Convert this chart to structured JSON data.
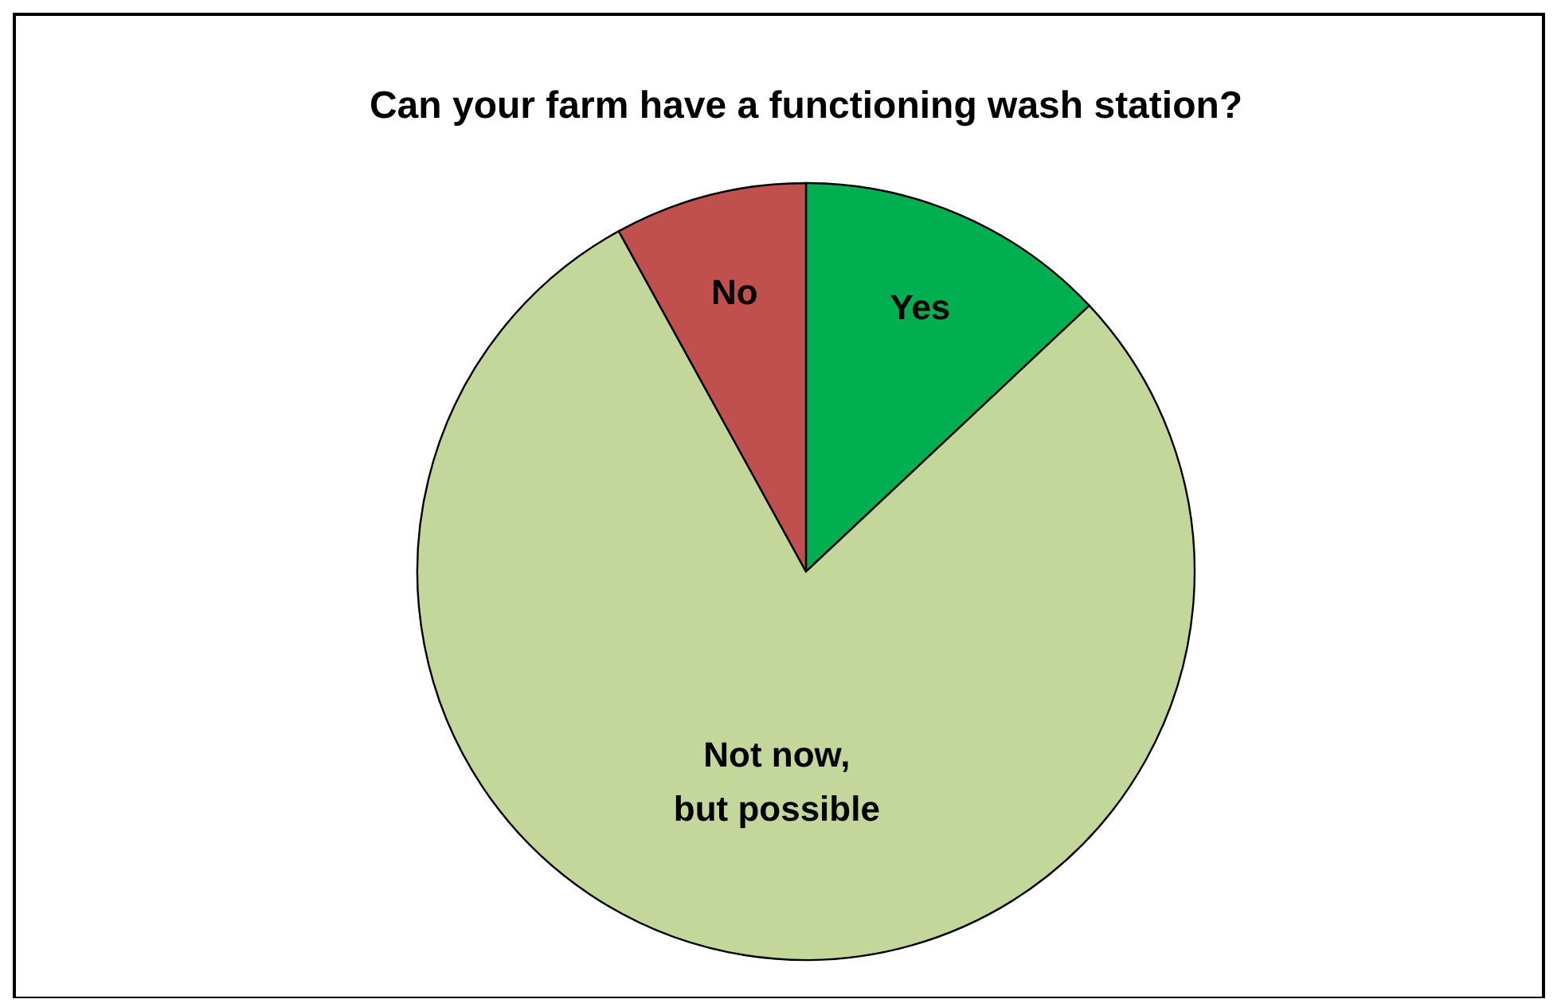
{
  "chart_data": {
    "type": "pie",
    "title": "Can your farm have a functioning wash station?",
    "categories": [
      "Yes",
      "Not now, but possible",
      "No"
    ],
    "values": [
      13,
      79,
      8
    ],
    "colors": [
      "#00b050",
      "#c4d79b",
      "#c0504d"
    ],
    "legend": false
  }
}
